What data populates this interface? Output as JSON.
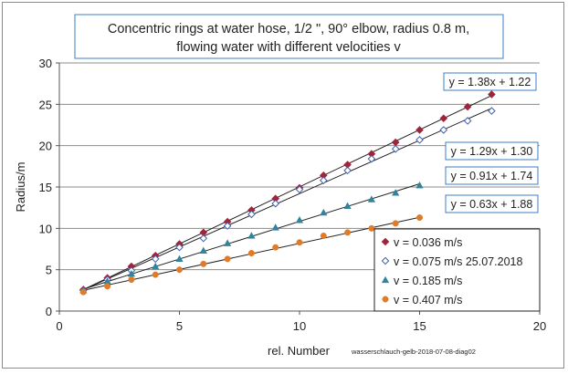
{
  "chart_data": {
    "type": "scatter",
    "title_lines": [
      "Concentric rings at water hose, 1/2 \",  90° elbow, radius 0.8 m,",
      "flowing water with different velocities  v"
    ],
    "xlabel": "rel. Number",
    "ylabel": "Radius/m",
    "xlim": [
      0,
      20
    ],
    "ylim": [
      0,
      30
    ],
    "x_ticks": [
      0,
      5,
      10,
      15,
      20
    ],
    "y_ticks": [
      0,
      5,
      10,
      15,
      20,
      25,
      30
    ],
    "grid": "horizontal",
    "footnote": "wasserschlauch-gelb-2018-07-08-diag02",
    "legend_position": "bottom-right",
    "series": [
      {
        "name": "v = 0.036 m/s",
        "color": "#a0243a",
        "marker": "diamond-filled",
        "x": [
          1,
          2,
          3,
          4,
          5,
          6,
          7,
          8,
          9,
          10,
          11,
          12,
          13,
          14,
          15,
          16,
          17,
          18
        ],
        "y": [
          2.6,
          4.0,
          5.4,
          6.7,
          8.1,
          9.5,
          10.8,
          12.2,
          13.6,
          14.9,
          16.4,
          17.7,
          19.0,
          20.4,
          21.9,
          23.3,
          24.7,
          26.2
        ],
        "trend_label": "y = 1.38x + 1.22",
        "trend": [
          1.38,
          1.22
        ]
      },
      {
        "name": "v = 0.075 m/s 25.07.2018",
        "color": "#3f5fa8",
        "marker": "diamond-open",
        "x": [
          1,
          2,
          3,
          4,
          5,
          6,
          7,
          8,
          9,
          10,
          11,
          12,
          13,
          14,
          15,
          16,
          17,
          18
        ],
        "y": [
          2.5,
          3.8,
          4.9,
          6.3,
          7.7,
          8.8,
          10.3,
          11.7,
          13.0,
          14.7,
          15.8,
          17.0,
          18.4,
          19.6,
          20.7,
          21.9,
          23.0,
          24.2
        ],
        "trend_label": "y = 1.29x + 1.30",
        "trend": [
          1.29,
          1.3
        ]
      },
      {
        "name": "v = 0.185 m/s",
        "color": "#31849b",
        "marker": "triangle",
        "x": [
          1,
          2,
          3,
          4,
          5,
          6,
          7,
          8,
          9,
          10,
          11,
          12,
          13,
          14,
          15
        ],
        "y": [
          2.5,
          3.6,
          4.5,
          5.4,
          6.3,
          7.3,
          8.2,
          9.1,
          10.1,
          11.0,
          11.9,
          12.7,
          13.5,
          14.3,
          15.2
        ],
        "trend_label": "y = 0.91x + 1.74",
        "trend": [
          0.91,
          1.74
        ]
      },
      {
        "name": "v = 0.407 m/s",
        "color": "#e07b28",
        "marker": "circle",
        "x": [
          1,
          2,
          3,
          4,
          5,
          6,
          7,
          8,
          9,
          10,
          11,
          12,
          13,
          14,
          15
        ],
        "y": [
          2.3,
          3.0,
          3.8,
          4.4,
          5.0,
          5.7,
          6.3,
          7.0,
          7.7,
          8.3,
          9.1,
          9.5,
          10.0,
          10.6,
          11.3
        ],
        "trend_label": "y = 0.63x + 1.88",
        "trend": [
          0.63,
          1.88
        ]
      }
    ]
  }
}
